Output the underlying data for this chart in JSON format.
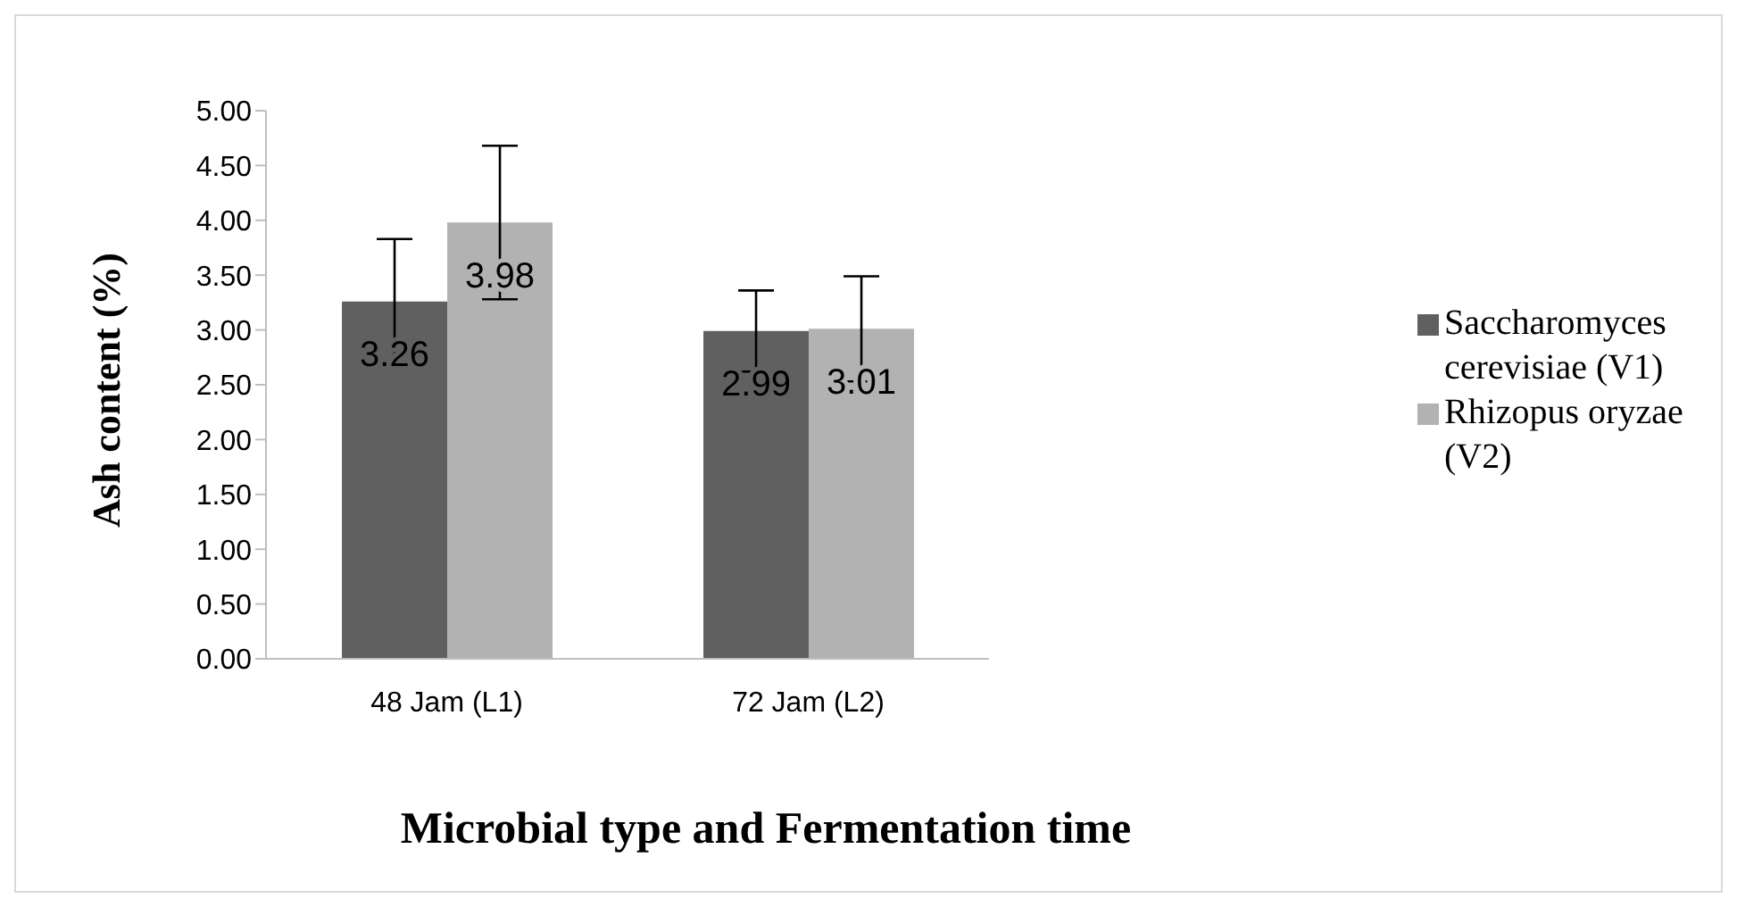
{
  "chart_data": {
    "type": "bar",
    "xlabel": "Microbial type and Fermentation time",
    "ylabel": "Ash content (%)",
    "categories": [
      "48 Jam (L1)",
      "72 Jam (L2)"
    ],
    "series": [
      {
        "name": "Saccharomyces cerevisiae (V1)",
        "color": "#606060",
        "values": [
          3.26,
          2.99
        ],
        "errors": [
          0.57,
          0.37
        ]
      },
      {
        "name": "Rhizopus oryzae (V2)",
        "color": "#b2b2b2",
        "values": [
          3.98,
          3.01
        ],
        "errors": [
          0.7,
          0.48
        ]
      }
    ],
    "ylim": [
      0,
      5
    ],
    "yticks": [
      {
        "value": 0,
        "label": "0.00"
      },
      {
        "value": 0.5,
        "label": "0.50"
      },
      {
        "value": 1,
        "label": "1.00"
      },
      {
        "value": 1.5,
        "label": "1.50"
      },
      {
        "value": 2,
        "label": "2.00"
      },
      {
        "value": 2.5,
        "label": "2.50"
      },
      {
        "value": 3,
        "label": "3.00"
      },
      {
        "value": 3.5,
        "label": "3.50"
      },
      {
        "value": 4,
        "label": "4.00"
      },
      {
        "value": 4.5,
        "label": "4.50"
      },
      {
        "value": 5,
        "label": "5.00"
      }
    ],
    "data_labels": true,
    "grid": false,
    "legend": "right"
  }
}
